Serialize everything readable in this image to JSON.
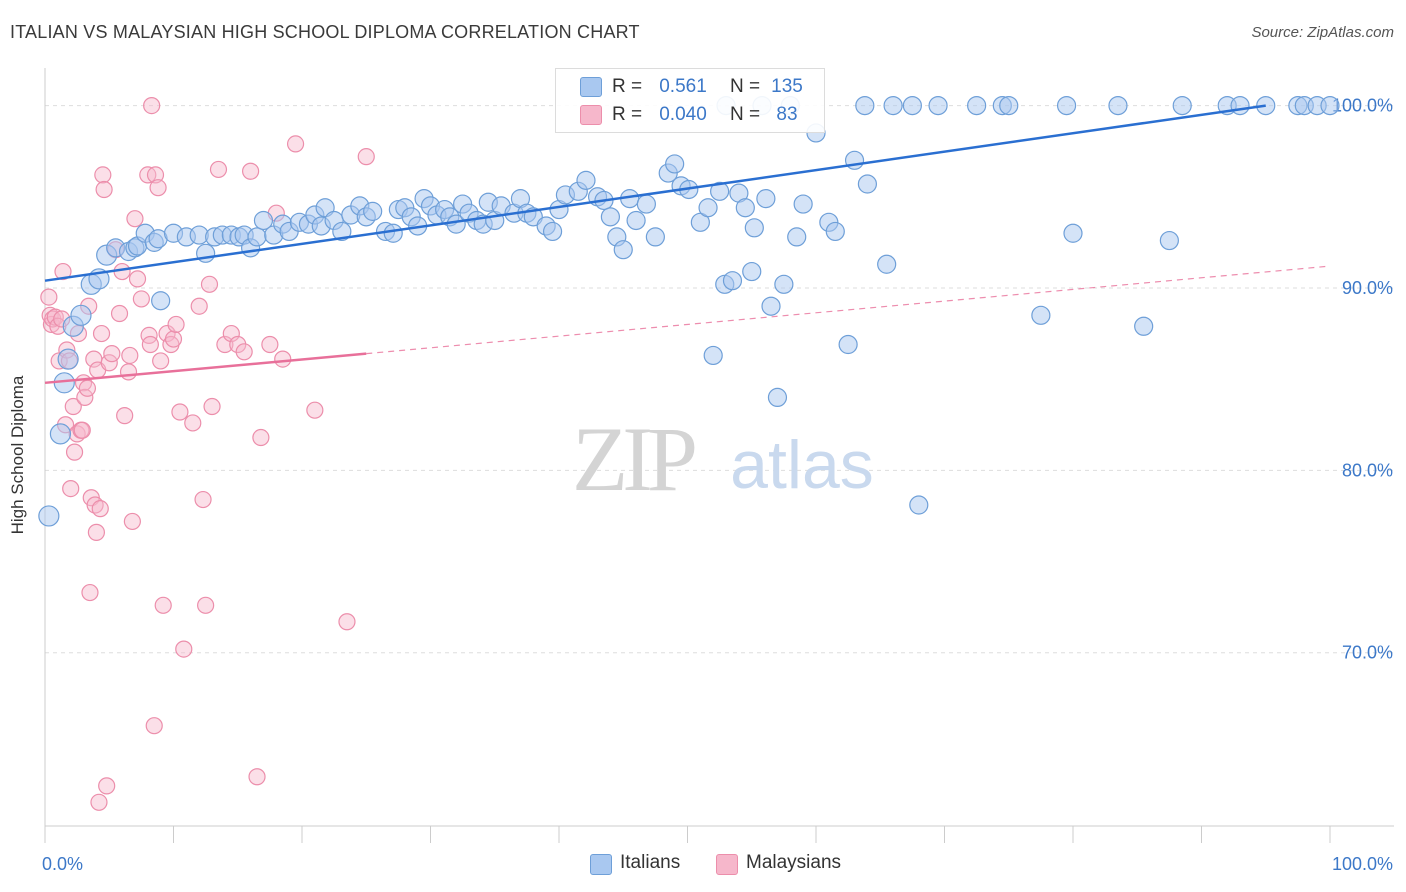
{
  "title": "ITALIAN VS MALAYSIAN HIGH SCHOOL DIPLOMA CORRELATION CHART",
  "source": "Source: ZipAtlas.com",
  "colors": {
    "italians_fill": "#a9c8f0",
    "italians_stroke": "#6e9fd8",
    "italians_line": "#2a6fd1",
    "malaysians_fill": "#f6b7cb",
    "malaysians_stroke": "#ec8eab",
    "malaysians_line": "#e8709a",
    "axis_text": "#3c78c8",
    "grid": "#dddddd",
    "watermark": "#d4d4d4"
  },
  "legend": {
    "r_label": "R =",
    "n_label": "N =",
    "italians": {
      "r": "0.561",
      "n": "135"
    },
    "malaysians": {
      "r": "0.040",
      "n": "83"
    }
  },
  "bottom_legend": {
    "italians": "Italians",
    "malaysians": "Malaysians"
  },
  "watermark": {
    "zip": "ZIP",
    "atlas": "atlas"
  },
  "chart_data": {
    "type": "scatter",
    "title": "ITALIAN VS MALAYSIAN HIGH SCHOOL DIPLOMA CORRELATION CHART",
    "xlabel": "",
    "ylabel": "High School Diploma",
    "xlim": [
      0,
      100
    ],
    "ylim": [
      60.5,
      102.5
    ],
    "x_tick_labels": [
      "0.0%",
      "100.0%"
    ],
    "y_ticks": [
      70,
      80,
      90,
      100
    ],
    "y_tick_labels": [
      "70.0%",
      "80.0%",
      "90.0%",
      "100.0%"
    ],
    "series": [
      {
        "name": "Italians",
        "r": 0.561,
        "n": 135,
        "trend": {
          "x": [
            0,
            95
          ],
          "y": [
            90.4,
            100.0
          ]
        },
        "points": [
          [
            0.3,
            77.5
          ],
          [
            1.2,
            82.0
          ],
          [
            1.5,
            84.8
          ],
          [
            1.8,
            86.1
          ],
          [
            2.2,
            87.9
          ],
          [
            2.8,
            88.5
          ],
          [
            3.6,
            90.2
          ],
          [
            4.2,
            90.5
          ],
          [
            4.8,
            91.8
          ],
          [
            5.5,
            92.2
          ],
          [
            6.5,
            92.0
          ],
          [
            7.0,
            92.2
          ],
          [
            7.2,
            92.3
          ],
          [
            7.8,
            93.0
          ],
          [
            8.5,
            92.5
          ],
          [
            8.8,
            92.7
          ],
          [
            9.0,
            89.3
          ],
          [
            10.0,
            93.0
          ],
          [
            11.0,
            92.8
          ],
          [
            12.0,
            92.9
          ],
          [
            12.5,
            91.9
          ],
          [
            13.2,
            92.8
          ],
          [
            13.8,
            92.9
          ],
          [
            14.5,
            92.9
          ],
          [
            15.1,
            92.8
          ],
          [
            15.5,
            92.9
          ],
          [
            16.0,
            92.2
          ],
          [
            16.5,
            92.8
          ],
          [
            17.0,
            93.7
          ],
          [
            17.8,
            92.9
          ],
          [
            18.5,
            93.5
          ],
          [
            19.0,
            93.1
          ],
          [
            19.8,
            93.6
          ],
          [
            20.5,
            93.5
          ],
          [
            21.0,
            94.0
          ],
          [
            21.5,
            93.4
          ],
          [
            21.8,
            94.4
          ],
          [
            22.5,
            93.7
          ],
          [
            23.1,
            93.1
          ],
          [
            23.8,
            94.0
          ],
          [
            24.5,
            94.5
          ],
          [
            25.0,
            93.9
          ],
          [
            25.5,
            94.2
          ],
          [
            26.5,
            93.1
          ],
          [
            27.1,
            93.0
          ],
          [
            27.5,
            94.3
          ],
          [
            28.0,
            94.4
          ],
          [
            28.5,
            93.9
          ],
          [
            29.0,
            93.4
          ],
          [
            29.5,
            94.9
          ],
          [
            30.0,
            94.5
          ],
          [
            30.5,
            94.0
          ],
          [
            31.1,
            94.3
          ],
          [
            31.5,
            93.9
          ],
          [
            32.0,
            93.5
          ],
          [
            32.5,
            94.6
          ],
          [
            33.0,
            94.1
          ],
          [
            33.6,
            93.7
          ],
          [
            34.1,
            93.5
          ],
          [
            34.5,
            94.7
          ],
          [
            35.0,
            93.7
          ],
          [
            35.5,
            94.5
          ],
          [
            36.5,
            94.1
          ],
          [
            37.0,
            94.9
          ],
          [
            37.5,
            94.1
          ],
          [
            38.0,
            93.9
          ],
          [
            39.0,
            93.4
          ],
          [
            39.5,
            93.1
          ],
          [
            40.0,
            94.3
          ],
          [
            40.5,
            95.1
          ],
          [
            41.5,
            95.3
          ],
          [
            42.1,
            95.9
          ],
          [
            43.0,
            95.0
          ],
          [
            43.5,
            94.8
          ],
          [
            44.0,
            93.9
          ],
          [
            44.5,
            92.8
          ],
          [
            45.0,
            92.1
          ],
          [
            45.5,
            94.9
          ],
          [
            46.0,
            93.7
          ],
          [
            46.8,
            94.6
          ],
          [
            47.5,
            92.8
          ],
          [
            48.5,
            96.3
          ],
          [
            49.0,
            96.8
          ],
          [
            49.5,
            95.6
          ],
          [
            50.1,
            95.4
          ],
          [
            51.0,
            93.6
          ],
          [
            51.6,
            94.4
          ],
          [
            52.0,
            86.3
          ],
          [
            52.5,
            95.3
          ],
          [
            52.9,
            90.2
          ],
          [
            53.5,
            90.4
          ],
          [
            54.0,
            95.2
          ],
          [
            54.5,
            94.4
          ],
          [
            55.0,
            90.9
          ],
          [
            55.2,
            93.3
          ],
          [
            56.1,
            94.9
          ],
          [
            56.5,
            89.0
          ],
          [
            57.0,
            84.0
          ],
          [
            57.5,
            90.2
          ],
          [
            58.5,
            92.8
          ],
          [
            59.0,
            94.6
          ],
          [
            60.0,
            98.5
          ],
          [
            61.0,
            93.6
          ],
          [
            61.5,
            93.1
          ],
          [
            62.5,
            86.9
          ],
          [
            63.0,
            97.0
          ],
          [
            64.0,
            95.7
          ],
          [
            65.5,
            91.3
          ],
          [
            66.0,
            100.0
          ],
          [
            67.5,
            100.0
          ],
          [
            68.0,
            78.1
          ],
          [
            69.5,
            100.0
          ],
          [
            72.5,
            100.0
          ],
          [
            74.5,
            100.0
          ],
          [
            75.0,
            100.0
          ],
          [
            77.5,
            88.5
          ],
          [
            79.5,
            100.0
          ],
          [
            80.0,
            93.0
          ],
          [
            83.5,
            100.0
          ],
          [
            85.5,
            87.9
          ],
          [
            87.5,
            92.6
          ],
          [
            88.5,
            100.0
          ],
          [
            92.0,
            100.0
          ],
          [
            93.0,
            100.0
          ],
          [
            95.0,
            100.0
          ],
          [
            97.5,
            100.0
          ],
          [
            98.0,
            100.0
          ],
          [
            99.0,
            100.0
          ],
          [
            100.0,
            100.0
          ],
          [
            53.0,
            100.0
          ],
          [
            55.8,
            100.0
          ],
          [
            58.0,
            100.0
          ],
          [
            63.8,
            100.0
          ]
        ]
      },
      {
        "name": "Malaysians",
        "r": 0.04,
        "n": 83,
        "trend": {
          "x": [
            0,
            25
          ],
          "y": [
            84.8,
            86.4
          ]
        },
        "trend_extended": {
          "x": [
            25,
            100
          ],
          "y": [
            86.4,
            91.2
          ]
        },
        "points": [
          [
            0.3,
            89.5
          ],
          [
            0.4,
            88.5
          ],
          [
            0.5,
            88.0
          ],
          [
            0.6,
            88.3
          ],
          [
            0.8,
            88.4
          ],
          [
            1.0,
            87.9
          ],
          [
            1.1,
            86.0
          ],
          [
            1.3,
            88.3
          ],
          [
            1.4,
            90.9
          ],
          [
            1.6,
            82.5
          ],
          [
            1.7,
            86.6
          ],
          [
            1.9,
            86.0
          ],
          [
            2.0,
            79.0
          ],
          [
            2.2,
            83.5
          ],
          [
            2.3,
            81.0
          ],
          [
            2.5,
            82.0
          ],
          [
            2.6,
            87.5
          ],
          [
            2.8,
            82.2
          ],
          [
            2.9,
            82.2
          ],
          [
            3.0,
            84.8
          ],
          [
            3.1,
            84.0
          ],
          [
            3.3,
            84.5
          ],
          [
            3.4,
            89.0
          ],
          [
            3.5,
            73.3
          ],
          [
            3.6,
            78.5
          ],
          [
            3.8,
            86.1
          ],
          [
            3.9,
            78.1
          ],
          [
            4.0,
            76.6
          ],
          [
            4.1,
            85.5
          ],
          [
            4.3,
            77.9
          ],
          [
            4.4,
            87.5
          ],
          [
            4.5,
            96.2
          ],
          [
            4.6,
            95.4
          ],
          [
            4.8,
            62.7
          ],
          [
            5.0,
            85.9
          ],
          [
            5.2,
            86.4
          ],
          [
            5.5,
            92.1
          ],
          [
            5.8,
            88.6
          ],
          [
            6.0,
            90.9
          ],
          [
            6.2,
            83.0
          ],
          [
            6.5,
            85.4
          ],
          [
            6.6,
            86.3
          ],
          [
            6.8,
            77.2
          ],
          [
            7.0,
            93.8
          ],
          [
            7.2,
            90.5
          ],
          [
            7.5,
            89.4
          ],
          [
            8.0,
            96.2
          ],
          [
            8.1,
            87.4
          ],
          [
            8.2,
            86.9
          ],
          [
            8.3,
            100.0
          ],
          [
            8.5,
            66.0
          ],
          [
            8.6,
            96.2
          ],
          [
            8.8,
            95.5
          ],
          [
            9.0,
            86.0
          ],
          [
            9.2,
            72.6
          ],
          [
            9.5,
            87.5
          ],
          [
            9.8,
            86.9
          ],
          [
            10.0,
            87.2
          ],
          [
            10.2,
            88.0
          ],
          [
            10.5,
            83.2
          ],
          [
            10.8,
            70.2
          ],
          [
            11.5,
            82.6
          ],
          [
            12.0,
            89.0
          ],
          [
            12.3,
            78.4
          ],
          [
            12.5,
            72.6
          ],
          [
            12.8,
            90.2
          ],
          [
            13.0,
            83.5
          ],
          [
            13.5,
            96.5
          ],
          [
            14.0,
            86.9
          ],
          [
            14.5,
            87.5
          ],
          [
            15.0,
            86.9
          ],
          [
            15.5,
            86.5
          ],
          [
            16.0,
            96.4
          ],
          [
            16.5,
            63.2
          ],
          [
            16.8,
            81.8
          ],
          [
            17.5,
            86.9
          ],
          [
            18.0,
            94.1
          ],
          [
            18.5,
            86.1
          ],
          [
            19.5,
            97.9
          ],
          [
            21.0,
            83.3
          ],
          [
            23.5,
            71.7
          ],
          [
            25.0,
            97.2
          ],
          [
            4.2,
            61.8
          ]
        ]
      }
    ]
  }
}
